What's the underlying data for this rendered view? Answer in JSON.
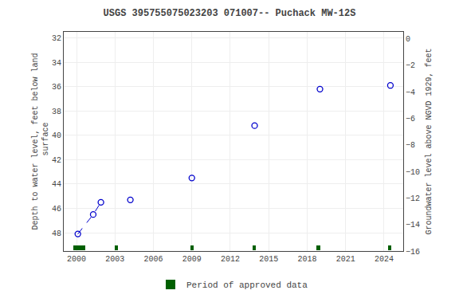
{
  "chart_data": {
    "type": "line",
    "title": "USGS 395755075023203 071007-- Puchack MW-12S",
    "y_label": "Depth to water level, feet below land\n surface",
    "y2_label": "Groundwater level above NGVD 1929, feet",
    "xlim": [
      1999.0,
      2025.5
    ],
    "xticks": [
      2000,
      2003,
      2006,
      2009,
      2012,
      2015,
      2018,
      2021,
      2024
    ],
    "ylim": [
      49.5,
      31.5
    ],
    "yticks": [
      32,
      34,
      36,
      38,
      40,
      42,
      44,
      46,
      48
    ],
    "y2lim": [
      -16,
      0.5
    ],
    "y2ticks": [
      0,
      -2,
      -4,
      -6,
      -8,
      -10,
      -12,
      -14,
      -16
    ],
    "grid": true,
    "legend": "bottom",
    "series": [
      {
        "x": [
          2000.1,
          2001.3,
          2001.9
        ],
        "values": [
          48.1,
          46.5,
          45.5
        ],
        "color": "#0000cc",
        "marker": "circle-open",
        "line_style": "dashed"
      },
      {
        "x": [
          2004.2,
          2009.0,
          2013.9,
          2019.0,
          2024.5
        ],
        "values": [
          45.3,
          43.5,
          39.2,
          36.2,
          35.9
        ],
        "color": "#0000cc",
        "marker": "circle-open",
        "line_style": "none"
      }
    ],
    "approved_periods": {
      "name": "Period of approved data",
      "color": "#006000",
      "x": [
        1999.75,
        2003.0,
        2008.9,
        2013.75,
        2018.75,
        2024.3
      ],
      "width": [
        0.9,
        0.25,
        0.25,
        0.25,
        0.25,
        0.25
      ]
    }
  }
}
